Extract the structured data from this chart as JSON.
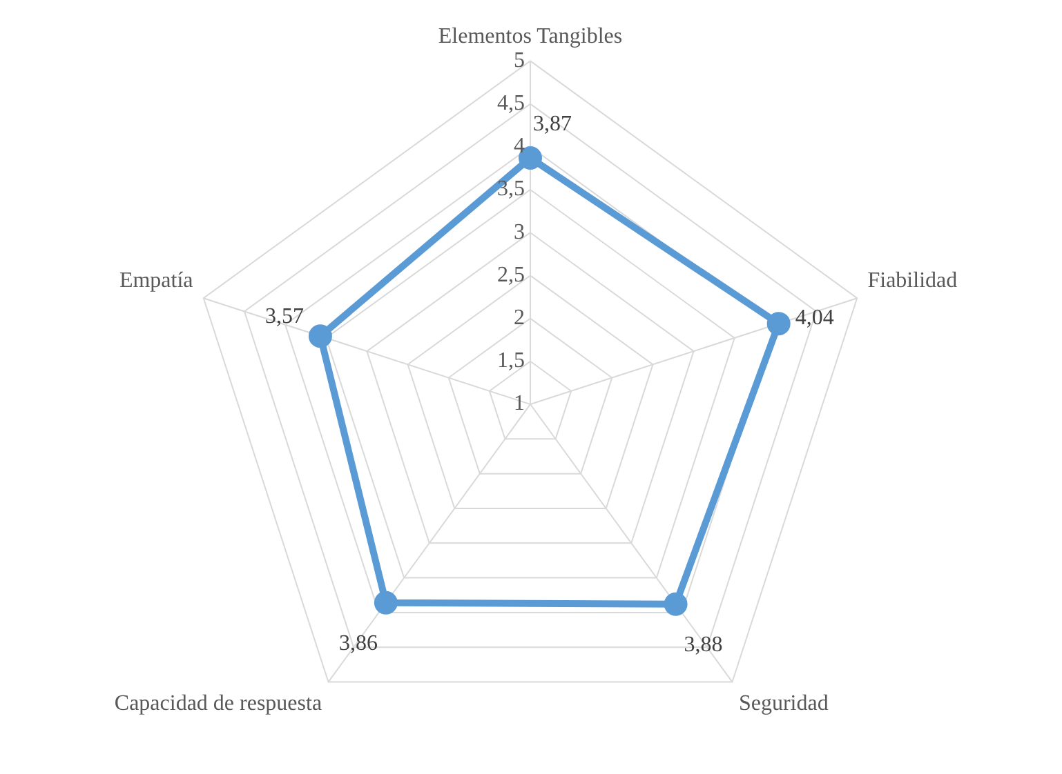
{
  "chart_data": {
    "type": "radar",
    "categories": [
      "Elementos Tangibles",
      "Fiabilidad",
      "Seguridad",
      "Capacidad de respuesta",
      "Empatía"
    ],
    "series": [
      {
        "color": "#5b9bd5",
        "values": [
          3.87,
          4.04,
          3.88,
          3.86,
          3.57
        ],
        "value_labels": [
          "3,87",
          "4,04",
          "3,88",
          "3,86",
          "3,57"
        ]
      }
    ],
    "ylim": [
      1,
      5
    ],
    "yticks": [
      {
        "value": 1,
        "label": "1"
      },
      {
        "value": 1.5,
        "label": "1,5"
      },
      {
        "value": 2,
        "label": "2"
      },
      {
        "value": 2.5,
        "label": "2,5"
      },
      {
        "value": 3,
        "label": "3"
      },
      {
        "value": 3.5,
        "label": "3,5"
      },
      {
        "value": 4,
        "label": "4"
      },
      {
        "value": 4.5,
        "label": "4,5"
      },
      {
        "value": 5,
        "label": "5"
      }
    ],
    "grid": true,
    "legend": false,
    "marker": "circle",
    "line_style": "solid"
  }
}
